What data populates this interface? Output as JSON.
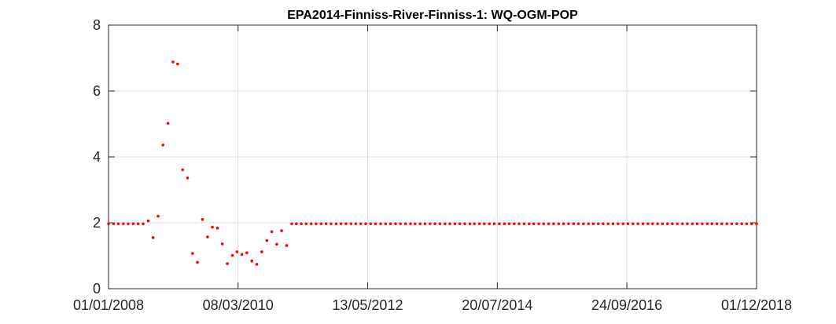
{
  "chart_data": {
    "type": "scatter",
    "title": "EPA2014-Finniss-River-Finniss-1: WQ-OGM-POP",
    "xlabel": "",
    "ylabel": "",
    "x_range": [
      "01/01/2008",
      "01/12/2018"
    ],
    "ylim": [
      0,
      8
    ],
    "grid": true,
    "x_tick_labels": [
      "01/01/2008",
      "08/03/2010",
      "13/05/2012",
      "20/07/2014",
      "24/09/2016",
      "01/12/2018"
    ],
    "y_tick_labels": [
      "0",
      "2",
      "4",
      "6",
      "8"
    ],
    "y_ticks": [
      0,
      2,
      4,
      6,
      8
    ],
    "marker_color": "#ff0000",
    "series": [
      {
        "name": "WQ-OGM-POP",
        "x": [
          "2008-01-01",
          "2008-02-01",
          "2008-03-01",
          "2008-04-01",
          "2008-05-01",
          "2008-06-01",
          "2008-07-01",
          "2008-08-01",
          "2008-09-01",
          "2008-10-01",
          "2008-11-01",
          "2008-12-01",
          "2009-01-01",
          "2009-02-01",
          "2009-03-01",
          "2009-04-01",
          "2009-05-01",
          "2009-06-01",
          "2009-07-01",
          "2009-08-01",
          "2009-09-01",
          "2009-10-01",
          "2009-11-01",
          "2009-12-01",
          "2010-01-01",
          "2010-02-01",
          "2010-03-01",
          "2010-04-01",
          "2010-05-01",
          "2010-06-01",
          "2010-07-01",
          "2010-08-01",
          "2010-09-01",
          "2010-10-01",
          "2010-11-01",
          "2010-12-01",
          "2011-01-01",
          "2011-02-01"
        ],
        "y": [
          1.97,
          1.97,
          1.97,
          1.97,
          1.97,
          1.97,
          1.97,
          1.97,
          2.06,
          1.55,
          2.2,
          4.36,
          5.02,
          6.88,
          6.82,
          3.61,
          3.36,
          1.07,
          0.8,
          2.1,
          1.57,
          1.87,
          1.84,
          1.36,
          0.76,
          1.01,
          1.12,
          1.04,
          1.09,
          0.84,
          0.74,
          1.12,
          1.46,
          1.73,
          1.35,
          1.76,
          1.31,
          1.97
        ],
        "constant_tail": {
          "from": "2011-03-01",
          "to": "2018-12-01",
          "value": 1.97,
          "step": "monthly"
        }
      }
    ]
  }
}
